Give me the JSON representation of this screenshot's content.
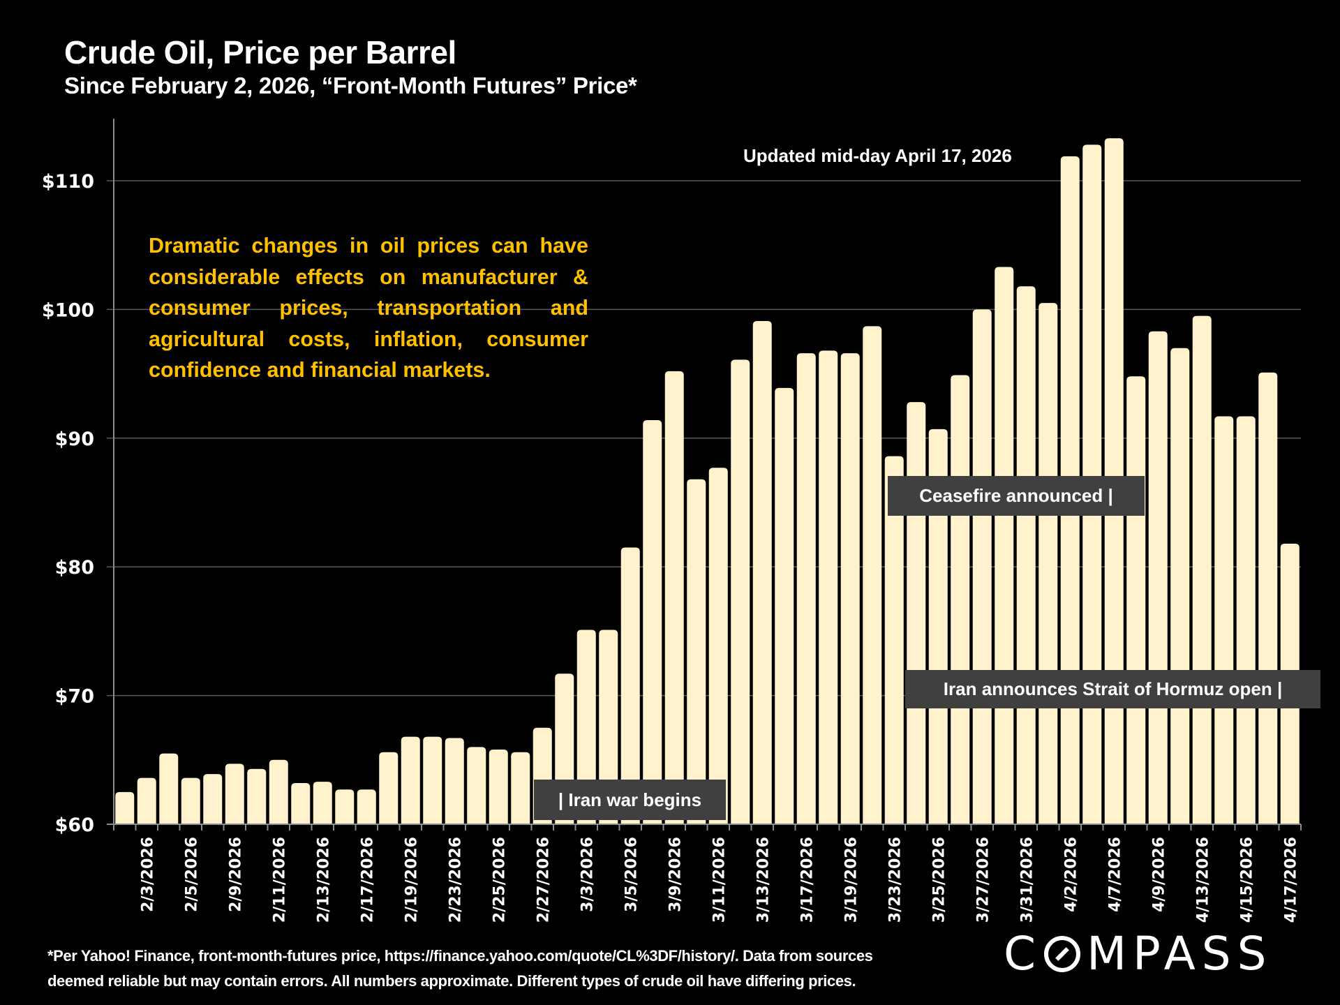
{
  "header": {
    "title": "Crude Oil, Price per Barrel",
    "subtitle": "Since February 2, 2026, “Front-Month Futures” Price*"
  },
  "callout": "Dramatic changes in oil prices can have considerable effects on manufacturer & consumer prices, transportation and agricultural costs, inflation, consumer confidence and financial markets.",
  "updated_note": "Updated mid-day April 17, 2026",
  "annotations": {
    "war": "| Iran war begins",
    "ceasefire": "Ceasefire announced |",
    "hormuz": "Iran announces Strait of Hormuz open |"
  },
  "footnote": {
    "line1": "*Per Yahoo! Finance, front-month-futures price, https://finance.yahoo.com/quote/CL%3DF/history/. Data from sources",
    "line2": "deemed reliable but may contain errors. All numbers approximate. Different types of crude oil have differing prices."
  },
  "logo": {
    "pre": "C",
    "post": "MPASS"
  },
  "colors": {
    "bar": "#FFF2CC",
    "callout": "#FFC000",
    "annotation_box": "#404040",
    "background": "#000000",
    "grid": "#595959"
  },
  "chart_data": {
    "type": "bar",
    "title": "Crude Oil, Price per Barrel",
    "subtitle": "Since February 2, 2026, “Front-Month Futures” Price*",
    "xlabel": "",
    "ylabel": "",
    "ylim": [
      60,
      115
    ],
    "yticks": [
      60,
      70,
      80,
      90,
      100,
      110
    ],
    "ytick_labels": [
      "$60",
      "$70",
      "$80",
      "$90",
      "$100",
      "$110"
    ],
    "grid": true,
    "legend": "none",
    "x_labels": [
      "",
      "2/3/2026",
      "",
      "2/5/2026",
      "",
      "2/9/2026",
      "",
      "2/11/2026",
      "",
      "2/13/2026",
      "",
      "2/17/2026",
      "",
      "2/19/2026",
      "",
      "2/23/2026",
      "",
      "2/25/2026",
      "",
      "2/27/2026",
      "",
      "3/3/2026",
      "",
      "3/5/2026",
      "",
      "3/9/2026",
      "",
      "3/11/2026",
      "",
      "3/13/2026",
      "",
      "3/17/2026",
      "",
      "3/19/2026",
      "",
      "3/23/2026",
      "",
      "3/25/2026",
      "",
      "3/27/2026",
      "",
      "3/31/2026",
      "",
      "4/2/2026",
      "",
      "4/7/2026",
      "",
      "4/9/2026",
      "",
      "4/13/2026",
      "",
      "4/15/2026",
      "",
      "4/17/2026"
    ],
    "values": [
      62.5,
      63.6,
      65.5,
      63.6,
      63.9,
      64.7,
      64.3,
      65.0,
      63.2,
      63.3,
      62.7,
      62.7,
      65.6,
      66.8,
      66.8,
      66.7,
      66.0,
      65.8,
      65.6,
      67.5,
      71.7,
      75.1,
      75.1,
      81.5,
      91.4,
      95.2,
      86.8,
      87.7,
      96.1,
      99.1,
      93.9,
      96.6,
      96.8,
      96.6,
      98.7,
      88.6,
      92.8,
      90.7,
      94.9,
      100.0,
      103.3,
      101.8,
      100.5,
      111.9,
      112.8,
      113.3,
      94.8,
      98.3,
      97.0,
      99.5,
      91.7,
      91.7,
      95.1,
      81.8
    ],
    "annotations": [
      "Updated mid-day April 17, 2026",
      "| Iran war begins",
      "Ceasefire announced |",
      "Iran announces Strait of Hormuz open |"
    ]
  }
}
